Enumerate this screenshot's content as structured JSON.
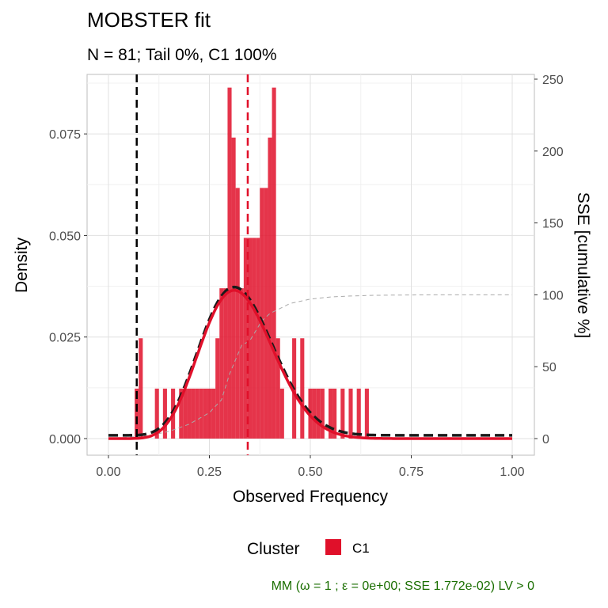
{
  "chart_data": {
    "type": "bar",
    "title": "MOBSTER fit",
    "subtitle": "N = 81; Tail 0%, C1 100%",
    "xlabel": "Observed Frequency",
    "ylabel": "Density",
    "y2label": "SSE [cumulative %]",
    "xlim": [
      0,
      1
    ],
    "ylim": [
      0,
      0.0875
    ],
    "y2lim": [
      0,
      250
    ],
    "x_ticks": [
      "0.00",
      "0.25",
      "0.50",
      "0.75",
      "1.00"
    ],
    "y_ticks": [
      "0.000",
      "0.025",
      "0.050",
      "0.075"
    ],
    "y2_ticks": [
      "0",
      "50",
      "100",
      "150",
      "200",
      "250"
    ],
    "grid": true,
    "bin_width": 0.01,
    "histogram": {
      "bin_centers": [
        0.07,
        0.08,
        0.12,
        0.14,
        0.16,
        0.18,
        0.19,
        0.2,
        0.21,
        0.22,
        0.23,
        0.24,
        0.25,
        0.26,
        0.27,
        0.28,
        0.29,
        0.3,
        0.31,
        0.32,
        0.33,
        0.34,
        0.35,
        0.36,
        0.37,
        0.38,
        0.39,
        0.4,
        0.41,
        0.42,
        0.43,
        0.46,
        0.48,
        0.5,
        0.51,
        0.52,
        0.53,
        0.55,
        0.56,
        0.58,
        0.6,
        0.62,
        0.64
      ],
      "densities": [
        0.0123,
        0.0247,
        0.0123,
        0.0123,
        0.0123,
        0.0123,
        0.0123,
        0.0123,
        0.0123,
        0.0123,
        0.0123,
        0.0123,
        0.0123,
        0.0123,
        0.0247,
        0.037,
        0.037,
        0.0864,
        0.0741,
        0.0617,
        0.037,
        0.0494,
        0.0494,
        0.0494,
        0.0494,
        0.0617,
        0.0617,
        0.0741,
        0.0864,
        0.0247,
        0.0123,
        0.0247,
        0.0247,
        0.0123,
        0.0123,
        0.0123,
        0.0123,
        0.0123,
        0.0123,
        0.0123,
        0.0123,
        0.0123,
        0.0123
      ]
    },
    "density_fit": {
      "type": "beta",
      "mean": 0.325,
      "peak_density": 0.0365
    },
    "vlines": [
      {
        "x": 0.07,
        "color": "#000000",
        "style": "dashed"
      },
      {
        "x": 0.345,
        "color": "#e0102a",
        "style": "dashed"
      }
    ],
    "sse_cumulative": {
      "x": [
        0.0,
        0.1,
        0.15,
        0.2,
        0.25,
        0.28,
        0.3,
        0.33,
        0.35,
        0.38,
        0.4,
        0.45,
        0.5,
        0.55,
        0.6,
        0.65,
        0.7,
        0.8,
        1.0
      ],
      "y": [
        0,
        2,
        5,
        10,
        18,
        27,
        45,
        65,
        68,
        82,
        87,
        94,
        97,
        98.5,
        99.2,
        99.6,
        99.8,
        100,
        100
      ]
    },
    "legend": {
      "title": "Cluster",
      "position": "bottom",
      "entries": [
        {
          "label": "C1",
          "color": "#e0102a"
        }
      ]
    },
    "caption": "MM (ω = 1 ; ε = 0e+00; SSE 1.772e-02) LV > 0",
    "colors": {
      "bars": "#e0102a",
      "fit_line": "#e0102a",
      "mixture_line": "#1a1a1a",
      "sse_line": "#aaaaaa",
      "caption": "#1a6e00"
    }
  }
}
